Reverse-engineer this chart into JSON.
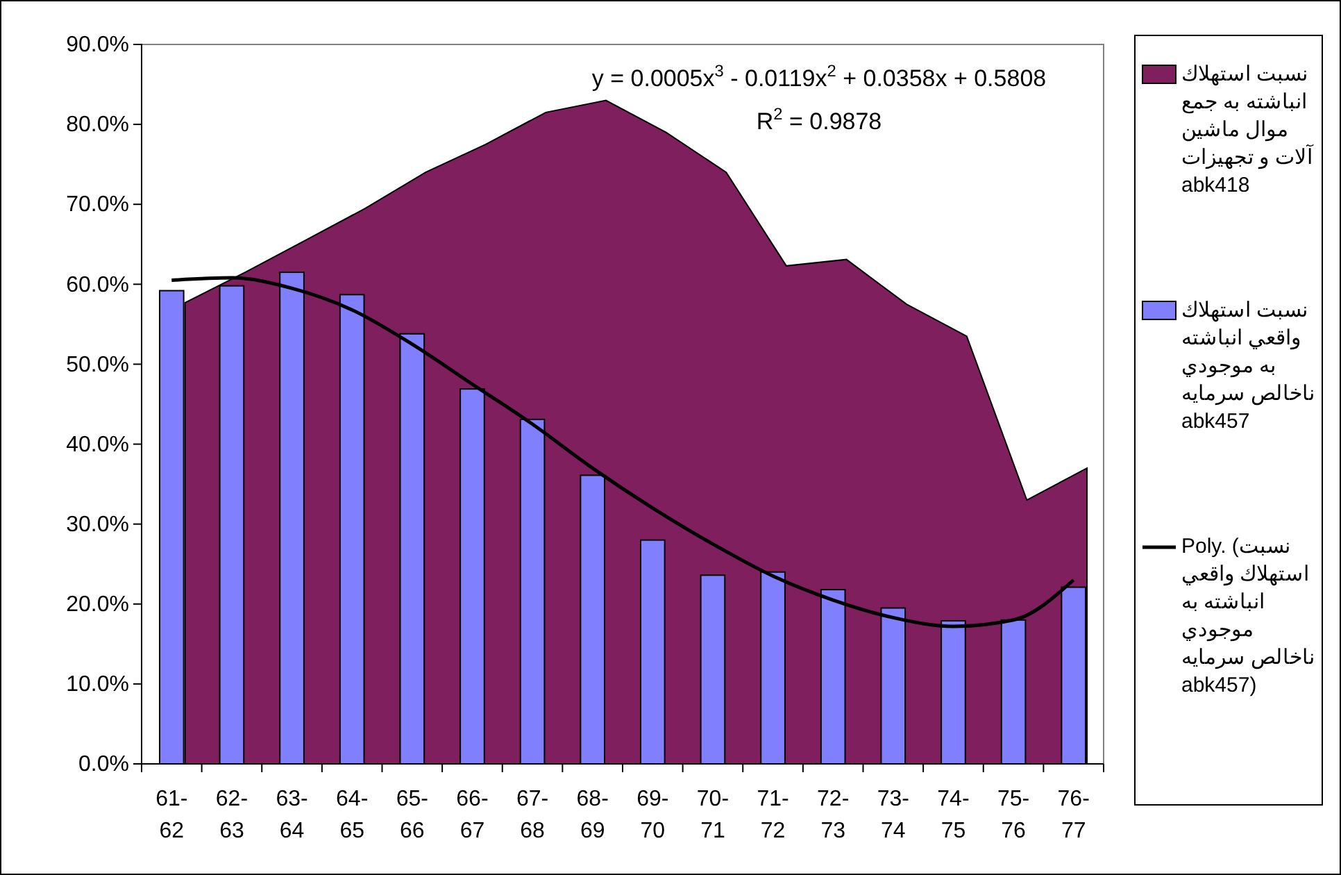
{
  "chart_data": {
    "type": "bar",
    "categories": [
      "61-62",
      "62-63",
      "63-64",
      "64-65",
      "65-66",
      "66-67",
      "67-68",
      "68-69",
      "69-70",
      "70-71",
      "71-72",
      "72-73",
      "73-74",
      "74-75",
      "75-76",
      "76-77"
    ],
    "series": [
      {
        "type": "area",
        "name": "نسبت استهلاك انباشته به جمع موال ماشين آلات و تجهيزات abk418",
        "color": "#801f5e",
        "values": [
          57.7,
          61.5,
          65.5,
          69.5,
          74.0,
          77.5,
          81.5,
          83.0,
          79.0,
          74.0,
          62.3,
          63.1,
          57.5,
          53.5,
          33.0,
          37.0
        ]
      },
      {
        "name": "نسبت استهلاك واقعي انباشته به موجودي ناخالص سرمايه abk457",
        "color": "#8080ff",
        "values": [
          59.2,
          59.8,
          61.5,
          58.7,
          53.8,
          46.9,
          43.1,
          36.1,
          28.0,
          23.6,
          24.0,
          21.8,
          19.5,
          17.9,
          18.0,
          22.1
        ]
      },
      {
        "type": "line",
        "name": "Poly. (نسبت استهلاك واقعي انباشته به موجودي ناخالص سرمايه abk457)",
        "color": "#000000",
        "x": [
          "61-62",
          "62-63",
          "63-64",
          "64-65",
          "65-66",
          "66-67",
          "67-68",
          "68-69",
          "69-70",
          "70-71",
          "71-72",
          "72-73",
          "73-74",
          "74-75",
          "75-76",
          "76-77"
        ],
        "values": [
          60.5,
          60.8,
          59.5,
          56.8,
          52.5,
          47.5,
          42.5,
          37.0,
          32.0,
          27.5,
          23.5,
          20.5,
          18.3,
          17.2,
          18.0,
          23.0
        ]
      }
    ],
    "ylim": [
      0,
      90
    ],
    "yticks": [
      {
        "value": 0,
        "label": "0.0%"
      },
      {
        "value": 10,
        "label": "10.0%"
      },
      {
        "value": 20,
        "label": "20.0%"
      },
      {
        "value": 30,
        "label": "30.0%"
      },
      {
        "value": 40,
        "label": "40.0%"
      },
      {
        "value": 50,
        "label": "50.0%"
      },
      {
        "value": 60,
        "label": "60.0%"
      },
      {
        "value": 70,
        "label": "70.0%"
      },
      {
        "value": 80,
        "label": "80.0%"
      },
      {
        "value": 90,
        "label": "90.0%"
      }
    ],
    "annotations": [
      "y = 0.0005x$^{3}$ - 0.0119x$^{2}$ + 0.0358x + 0.5808",
      "R$^{2}$ = 0.9878"
    ],
    "legend": "right",
    "grid": false
  }
}
